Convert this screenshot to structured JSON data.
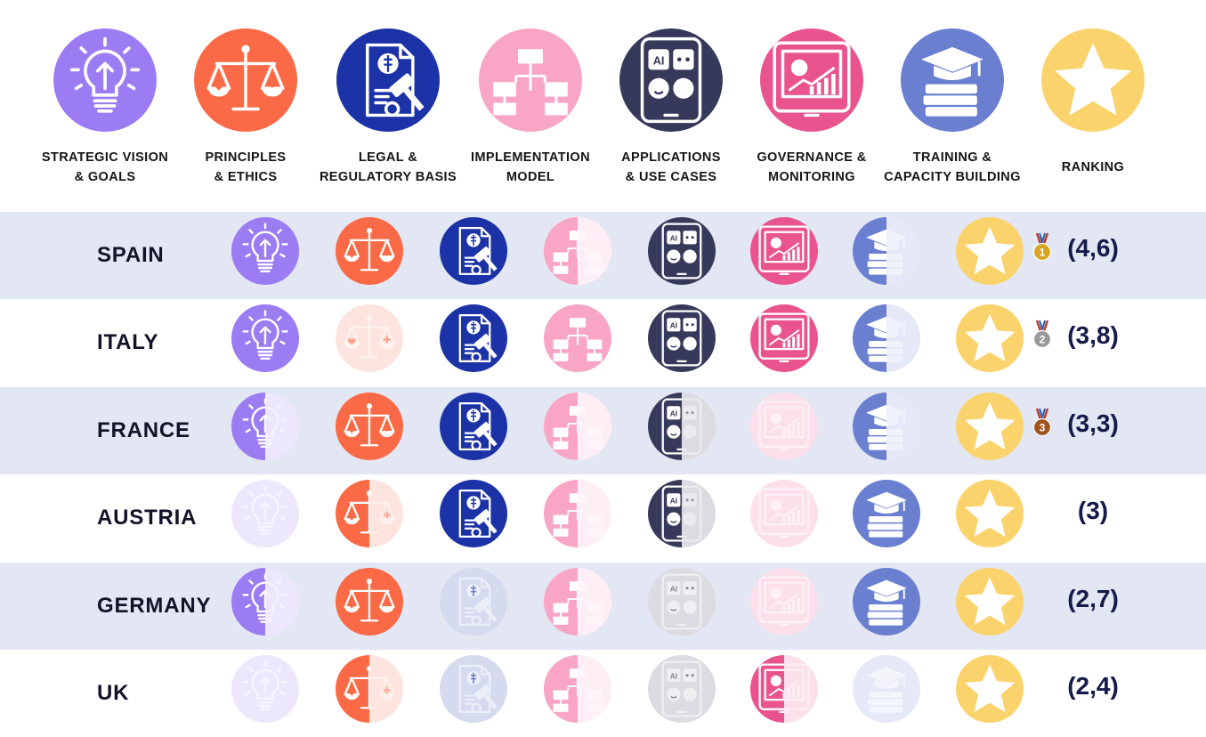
{
  "colors": {
    "row_shade": "#e3e6f3",
    "score_text": "#141a4a",
    "gold_medal": "#d8a521",
    "silver_medal": "#9a9a9a",
    "bronze_medal": "#a0541f"
  },
  "dimensions": [
    {
      "key": "vision",
      "label_line1": "STRATEGIC VISION",
      "label_line2": "& GOALS",
      "icon": "lightbulb-icon",
      "color": "#9b7cf3"
    },
    {
      "key": "ethics",
      "label_line1": "PRINCIPLES",
      "label_line2": "& ETHICS",
      "icon": "scales-icon",
      "color": "#fb6a46"
    },
    {
      "key": "legal",
      "label_line1": "LEGAL &",
      "label_line2": "REGULATORY BASIS",
      "icon": "legal-document-gavel-icon",
      "color": "#1c33a7"
    },
    {
      "key": "implementation",
      "label_line1": "IMPLEMENTATION",
      "label_line2": "MODEL",
      "icon": "flowchart-icon",
      "color": "#f8a5c6"
    },
    {
      "key": "applications",
      "label_line1": "APPLICATIONS",
      "label_line2": "& USE CASES",
      "icon": "tablet-ai-apps-icon",
      "color": "#37395a"
    },
    {
      "key": "governance",
      "label_line1": "GOVERNANCE &",
      "label_line2": "MONITORING",
      "icon": "tablet-chart-icon",
      "color": "#e9548f"
    },
    {
      "key": "training",
      "label_line1": "TRAINING &",
      "label_line2": "CAPACITY BUILDING",
      "icon": "graduation-books-icon",
      "color": "#6b7fd0"
    },
    {
      "key": "ranking",
      "label_line1": "",
      "label_line2": "RANKING",
      "icon": "star-icon",
      "color": "#fbd36c"
    }
  ],
  "countries": [
    {
      "name": "SPAIN",
      "scores": [
        1,
        1,
        1,
        0.5,
        1,
        1,
        0.5,
        1
      ],
      "medal": "gold",
      "medal_number": "1",
      "ranking": "(4,6)"
    },
    {
      "name": "ITALY",
      "scores": [
        1,
        0,
        1,
        1,
        1,
        1,
        0.5,
        1
      ],
      "medal": "silver",
      "medal_number": "2",
      "ranking": "(3,8)"
    },
    {
      "name": "FRANCE",
      "scores": [
        0.5,
        1,
        1,
        0.5,
        0.5,
        0,
        0.5,
        1
      ],
      "medal": "bronze",
      "medal_number": "3",
      "ranking": "(3,3)"
    },
    {
      "name": "AUSTRIA",
      "scores": [
        0,
        0.5,
        1,
        0.5,
        0.5,
        0,
        1,
        1
      ],
      "medal": "",
      "medal_number": "",
      "ranking": "(3)"
    },
    {
      "name": "GERMANY",
      "scores": [
        0.5,
        1,
        0,
        0.5,
        0,
        0,
        1,
        1
      ],
      "medal": "",
      "medal_number": "",
      "ranking": "(2,7)"
    },
    {
      "name": "UK",
      "scores": [
        0,
        0.5,
        0,
        0.5,
        0,
        0.5,
        0,
        1
      ],
      "medal": "",
      "medal_number": "",
      "ranking": "(2,4)"
    }
  ]
}
